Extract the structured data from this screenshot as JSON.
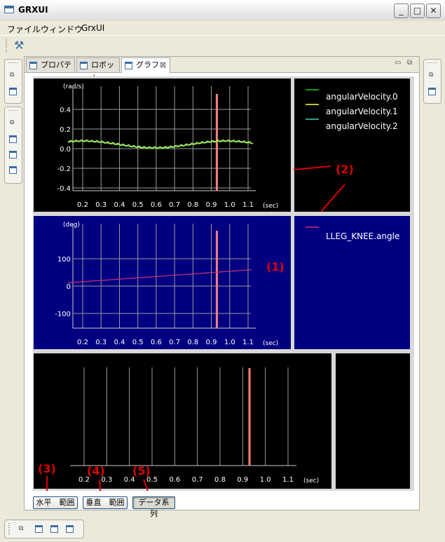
{
  "window": {
    "title": "GRXUI"
  },
  "menu": {
    "items": [
      "ファイル",
      "ウィンドウ",
      "GrxUI"
    ]
  },
  "tabs": [
    {
      "label": "プロパティ",
      "active": false,
      "closable": false
    },
    {
      "label": "ロボット",
      "active": false,
      "closable": false
    },
    {
      "label": "グラフ",
      "active": true,
      "closable": true
    }
  ],
  "graphs": [
    {
      "y_unit": "(rad/s)",
      "y_ticks": [
        "0.4",
        "0.2",
        "0.0",
        "-0.2",
        "-0.4"
      ],
      "x_ticks": [
        "0.2",
        "0.3",
        "0.4",
        "0.5",
        "0.6",
        "0.7",
        "0.8",
        "0.9",
        "1.0",
        "1.1"
      ],
      "x_unit": "(sec)",
      "background": "#000000",
      "legend": [
        {
          "name": "angularVelocity.0",
          "color": "#22cc22"
        },
        {
          "name": "angularVelocity.1",
          "color": "#ffff44"
        },
        {
          "name": "angularVelocity.2",
          "color": "#44cccc"
        }
      ]
    },
    {
      "y_unit": "(deg)",
      "y_ticks": [
        "100",
        "0",
        "-100"
      ],
      "x_ticks": [
        "0.2",
        "0.3",
        "0.4",
        "0.5",
        "0.6",
        "0.7",
        "0.8",
        "0.9",
        "1.0",
        "1.1"
      ],
      "x_unit": "(sec)",
      "background": "#000080",
      "legend": [
        {
          "name": "LLEG_KNEE.angle",
          "color": "#cc3377"
        }
      ]
    },
    {
      "x_ticks": [
        "0.2",
        "0.3",
        "0.4",
        "0.5",
        "0.6",
        "0.7",
        "0.8",
        "0.9",
        "1.0",
        "1.1"
      ],
      "x_unit": "(sec)",
      "background": "#000000"
    }
  ],
  "time_cursor": {
    "time_sec": 0.93,
    "color": "#ff8080"
  },
  "annotations": [
    "(1)",
    "(2)",
    "(3)",
    "(4)",
    "(5)"
  ],
  "annotation_color": "#dd0000",
  "buttons": {
    "horizontal_range": "水平　範囲",
    "vertical_range": "垂直　範囲",
    "data_series": "データ系列"
  }
}
